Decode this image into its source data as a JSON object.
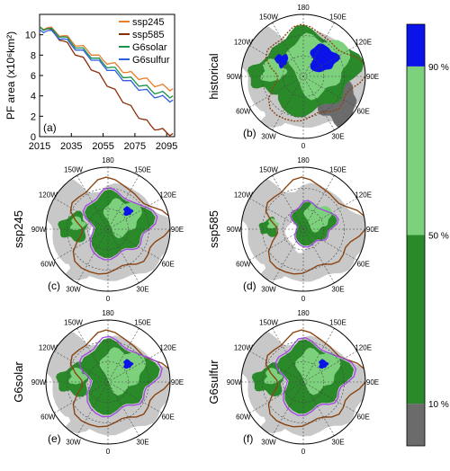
{
  "colors": {
    "ssp245": "#e87d2a",
    "ssp585": "#8b2e07",
    "G6solar": "#17924a",
    "G6sulfur": "#2f5ee0",
    "land": "#c8c8c8",
    "ocean": "#ffffff",
    "grid": "#444444",
    "purple": "#a24de0",
    "brown": "#8b4513",
    "bar_0_10": "#6b6b6b",
    "bar_10_50": "#2a8a2a",
    "bar_50_90": "#7dd17d",
    "bar_90_100": "#0a14e8"
  },
  "chart_data": [
    {
      "type": "line",
      "panel_label": "(a)",
      "ylabel": "PF area (x10⁶km²)",
      "xlabel": "",
      "xlim": [
        2015,
        2100
      ],
      "ylim": [
        0,
        12
      ],
      "x_ticks": [
        2015,
        2035,
        2055,
        2075,
        2095
      ],
      "y_ticks": [
        0,
        2,
        4,
        6,
        8,
        10
      ],
      "legend_position": "top-right",
      "x": [
        2015,
        2020,
        2025,
        2030,
        2035,
        2040,
        2045,
        2050,
        2055,
        2060,
        2065,
        2070,
        2075,
        2080,
        2085,
        2090,
        2095,
        2099
      ],
      "series": [
        {
          "name": "ssp245",
          "values": [
            10.8,
            10.7,
            10.3,
            9.9,
            9.4,
            8.9,
            8.5,
            8.0,
            7.5,
            7.2,
            6.8,
            6.3,
            6.0,
            5.7,
            5.3,
            5.0,
            4.8,
            4.7
          ]
        },
        {
          "name": "ssp585",
          "values": [
            10.8,
            10.6,
            10.0,
            9.4,
            8.6,
            7.9,
            7.2,
            6.4,
            5.6,
            4.8,
            4.0,
            3.2,
            2.4,
            1.7,
            1.1,
            0.7,
            0.4,
            0.3
          ]
        },
        {
          "name": "G6solar",
          "values": [
            10.8,
            10.6,
            10.2,
            9.8,
            9.2,
            8.7,
            8.2,
            7.7,
            7.2,
            6.8,
            6.3,
            5.8,
            5.4,
            5.0,
            4.6,
            4.3,
            4.1,
            4.0
          ]
        },
        {
          "name": "G6sulfur",
          "values": [
            10.5,
            10.4,
            10.0,
            9.6,
            9.0,
            8.5,
            8.0,
            7.5,
            7.0,
            6.5,
            6.0,
            5.5,
            5.0,
            4.6,
            4.2,
            3.9,
            3.7,
            3.6
          ]
        }
      ]
    },
    {
      "type": "heatmap",
      "panels": [
        {
          "label": "(b)",
          "title": "historical"
        },
        {
          "label": "(c)",
          "title": "ssp245"
        },
        {
          "label": "(d)",
          "title": "ssp585"
        },
        {
          "label": "(e)",
          "title": "G6solar"
        },
        {
          "label": "(f)",
          "title": "G6sulfur"
        }
      ],
      "lon_labels": [
        "180",
        "150E",
        "120E",
        "90E",
        "60E",
        "30E",
        "0",
        "30W",
        "60W",
        "90W",
        "120W",
        "150W"
      ],
      "colorbar": {
        "ticks": [
          "10 %",
          "50 %",
          "90 %"
        ],
        "bins": [
          {
            "range": [
              0,
              10
            ],
            "color": "#6b6b6b"
          },
          {
            "range": [
              10,
              50
            ],
            "color": "#2a8a2a"
          },
          {
            "range": [
              50,
              90
            ],
            "color": "#7dd17d"
          },
          {
            "range": [
              90,
              100
            ],
            "color": "#0a14e8"
          }
        ]
      }
    }
  ]
}
